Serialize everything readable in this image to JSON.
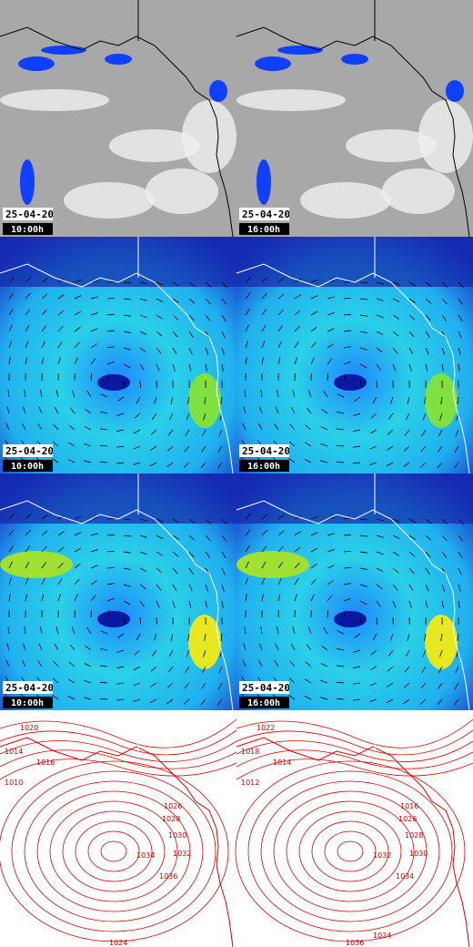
{
  "panels": [
    {
      "date": "25-04-20",
      "time": "10:00h"
    },
    {
      "date": "25-04-20",
      "time": "16:00h"
    },
    {
      "date": "25-04-20",
      "time": "10:00h"
    },
    {
      "date": "25-04-20",
      "time": "16:00h"
    },
    {
      "date": "25-04-20",
      "time": "10:00h"
    },
    {
      "date": "25-04-20",
      "time": "16:00h"
    },
    {
      "contour_labels": [
        "1020",
        "1014",
        "1010",
        "1016",
        "1026",
        "1028",
        "1030",
        "1032",
        "1034",
        "1036",
        "1024"
      ]
    },
    {
      "contour_labels": [
        "1022",
        "1018",
        "1012",
        "1014",
        "1016",
        "1026",
        "1028",
        "1030",
        "1032",
        "1034",
        "1036",
        "1024"
      ]
    }
  ]
}
